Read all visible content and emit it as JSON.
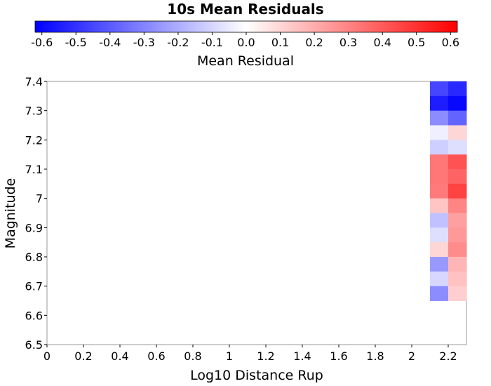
{
  "chart_data": {
    "type": "heatmap",
    "title": "10s Mean Residuals",
    "xlabel": "Log10 Distance Rup",
    "ylabel": "Magnitude",
    "xlim": [
      0,
      2.3
    ],
    "ylim": [
      6.5,
      7.4
    ],
    "x_ticks": [
      "0",
      "0.2",
      "0.4",
      "0.6",
      "0.8",
      "1",
      "1.2",
      "1.4",
      "1.6",
      "1.8",
      "2",
      "2.2"
    ],
    "y_ticks": [
      "6.5",
      "6.6",
      "6.7",
      "6.8",
      "6.9",
      "7",
      "7.1",
      "7.2",
      "7.3",
      "7.4"
    ],
    "colorbar": {
      "label": "Mean Residual",
      "range": [
        -0.62,
        0.62
      ],
      "min_color": "#0000ff",
      "mid_color": "#ffffff",
      "max_color": "#ff0000",
      "ticks": [
        "-0.6",
        "-0.5",
        "-0.4",
        "-0.3",
        "-0.2",
        "-0.1",
        "0.0",
        "0.1",
        "0.2",
        "0.3",
        "0.4",
        "0.5",
        "0.6"
      ]
    },
    "x_bins": [
      2.1,
      2.2
    ],
    "x_bin_width": 0.1,
    "y_bin_height": 0.05,
    "cells": [
      {
        "x": 2.1,
        "y": 7.35,
        "value": -0.45
      },
      {
        "x": 2.2,
        "y": 7.35,
        "value": -0.52
      },
      {
        "x": 2.1,
        "y": 7.3,
        "value": -0.55
      },
      {
        "x": 2.2,
        "y": 7.3,
        "value": -0.6
      },
      {
        "x": 2.1,
        "y": 7.25,
        "value": -0.28
      },
      {
        "x": 2.2,
        "y": 7.25,
        "value": -0.38
      },
      {
        "x": 2.1,
        "y": 7.2,
        "value": -0.04
      },
      {
        "x": 2.2,
        "y": 7.2,
        "value": 0.1
      },
      {
        "x": 2.1,
        "y": 7.15,
        "value": -0.12
      },
      {
        "x": 2.2,
        "y": 7.15,
        "value": -0.08
      },
      {
        "x": 2.1,
        "y": 7.1,
        "value": 0.33
      },
      {
        "x": 2.2,
        "y": 7.1,
        "value": 0.42
      },
      {
        "x": 2.1,
        "y": 7.05,
        "value": 0.33
      },
      {
        "x": 2.2,
        "y": 7.05,
        "value": 0.38
      },
      {
        "x": 2.1,
        "y": 7.0,
        "value": 0.32
      },
      {
        "x": 2.2,
        "y": 7.0,
        "value": 0.46
      },
      {
        "x": 2.1,
        "y": 6.95,
        "value": 0.14
      },
      {
        "x": 2.2,
        "y": 6.95,
        "value": 0.3
      },
      {
        "x": 2.1,
        "y": 6.9,
        "value": -0.15
      },
      {
        "x": 2.2,
        "y": 6.9,
        "value": 0.23
      },
      {
        "x": 2.1,
        "y": 6.85,
        "value": -0.08
      },
      {
        "x": 2.2,
        "y": 6.85,
        "value": 0.25
      },
      {
        "x": 2.1,
        "y": 6.8,
        "value": 0.1
      },
      {
        "x": 2.2,
        "y": 6.8,
        "value": 0.28
      },
      {
        "x": 2.1,
        "y": 6.75,
        "value": -0.25
      },
      {
        "x": 2.2,
        "y": 6.75,
        "value": 0.18
      },
      {
        "x": 2.1,
        "y": 6.7,
        "value": -0.1
      },
      {
        "x": 2.2,
        "y": 6.7,
        "value": 0.15
      },
      {
        "x": 2.1,
        "y": 6.65,
        "value": -0.28
      },
      {
        "x": 2.2,
        "y": 6.65,
        "value": 0.12
      }
    ]
  }
}
